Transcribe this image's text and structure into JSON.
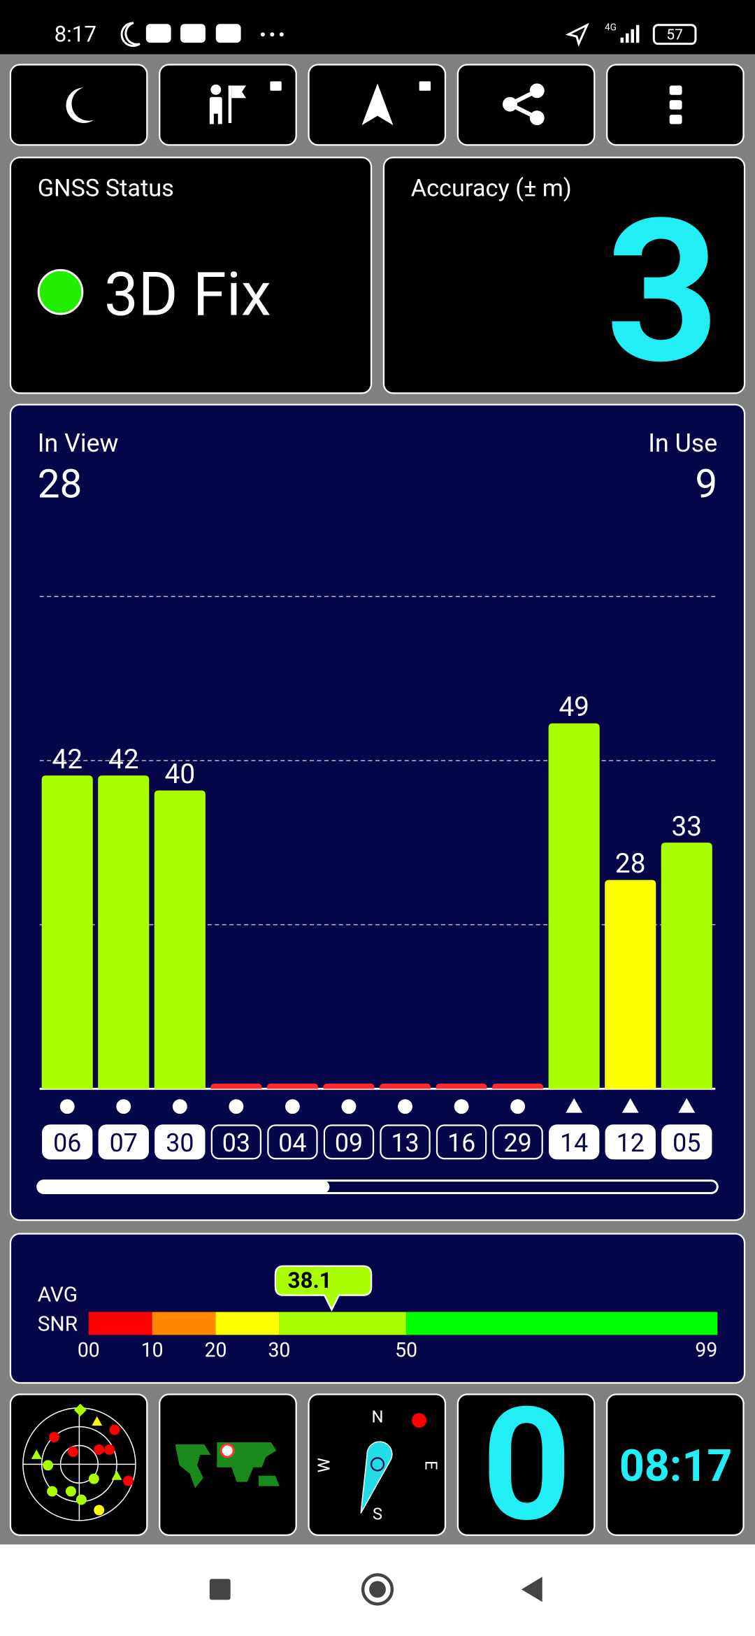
{
  "status_bar": {
    "time": "8:17",
    "network": "4G",
    "battery": "57"
  },
  "gnss_status": {
    "title": "GNSS Status",
    "fix": "3D Fix"
  },
  "accuracy": {
    "title": "Accuracy (± m)",
    "value": 3
  },
  "chart_data": {
    "type": "bar",
    "in_view_label": "In View",
    "in_view": 28,
    "in_use_label": "In Use",
    "in_use": 9,
    "categories": [
      "06",
      "07",
      "30",
      "03",
      "04",
      "09",
      "13",
      "16",
      "29",
      "14",
      "12",
      "05"
    ],
    "values": [
      42,
      42,
      40,
      0.7,
      0.7,
      0.7,
      0.7,
      0.7,
      0.7,
      49,
      28,
      33
    ],
    "value_labels": [
      "42",
      "42",
      "40",
      null,
      null,
      null,
      null,
      null,
      null,
      "49",
      "28",
      "33"
    ],
    "colors": [
      "#aaff00",
      "#aaff00",
      "#aaff00",
      "#ff2a2a",
      "#ff2a2a",
      "#ff2a2a",
      "#ff2a2a",
      "#ff2a2a",
      "#ff2a2a",
      "#aaff00",
      "#ffff00",
      "#aaff00"
    ],
    "markers": [
      "circle",
      "circle",
      "circle",
      "circle",
      "circle",
      "circle",
      "circle",
      "circle",
      "circle",
      "triangle",
      "triangle",
      "triangle"
    ],
    "used": [
      true,
      true,
      true,
      false,
      false,
      false,
      false,
      false,
      false,
      true,
      true,
      true
    ],
    "ylim": [
      0,
      66
    ],
    "yticks": [
      22,
      44,
      66
    ],
    "grid": true
  },
  "snr": {
    "label": [
      "AVG",
      "SNR"
    ],
    "value": 38.1,
    "xlim": [
      0,
      99
    ],
    "xticks": [
      {
        "value": 0,
        "label": "00"
      },
      10,
      20,
      30,
      50,
      99
    ],
    "bands": [
      {
        "from": 0,
        "to": 10,
        "color": "#ff0000"
      },
      {
        "from": 10,
        "to": 20,
        "color": "#ff8800"
      },
      {
        "from": 20,
        "to": 30,
        "color": "#ffff00"
      },
      {
        "from": 30,
        "to": 50,
        "color": "#aaff00"
      },
      {
        "from": 50,
        "to": 99,
        "color": "#00ff00"
      }
    ]
  },
  "compass": {
    "n": "N",
    "e": "E",
    "s": "S",
    "w": "W"
  },
  "speed": {
    "value": 0
  },
  "clock": {
    "time": "08:17"
  }
}
